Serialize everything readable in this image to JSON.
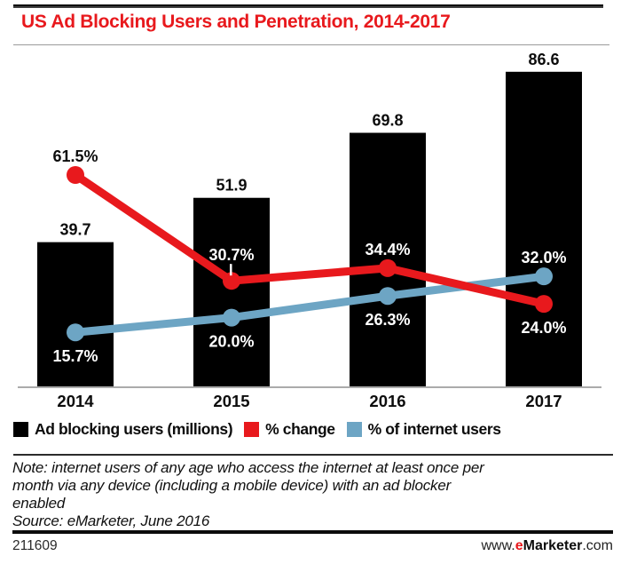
{
  "title": "US Ad Blocking Users and Penetration, 2014-2017",
  "chart_data": {
    "type": "bar",
    "subtype": "bar-line-combo",
    "title": "US Ad Blocking Users and Penetration, 2014-2017",
    "categories": [
      "2014",
      "2015",
      "2016",
      "2017"
    ],
    "series": [
      {
        "name": "Ad blocking users (millions)",
        "type": "bar",
        "color": "#000000",
        "values": [
          39.7,
          51.9,
          69.8,
          86.6
        ],
        "labels": [
          "39.7",
          "51.9",
          "69.8",
          "86.6"
        ]
      },
      {
        "name": "% change",
        "type": "line",
        "color": "#e8191d",
        "values": [
          61.5,
          30.7,
          34.4,
          24.0
        ],
        "labels": [
          "61.5%",
          "30.7%",
          "34.4%",
          "24.0%"
        ],
        "label_positions": [
          "above",
          "above",
          "above",
          "below"
        ],
        "label_colors": [
          "#0d0d0d",
          "#ffffff",
          "#ffffff",
          "#ffffff"
        ]
      },
      {
        "name": "% of internet users",
        "type": "line",
        "color": "#6da5c4",
        "values": [
          15.7,
          20.0,
          26.3,
          32.0
        ],
        "labels": [
          "15.7%",
          "20.0%",
          "26.3%",
          "32.0%"
        ],
        "label_positions": [
          "below",
          "below",
          "below",
          "above"
        ],
        "label_colors": [
          "#ffffff",
          "#ffffff",
          "#ffffff",
          "#ffffff"
        ]
      }
    ],
    "xlabel": "",
    "ylabel": "",
    "value_axis_visible": false,
    "grid": false,
    "legend_position": "bottom",
    "bar_ylim": [
      0,
      92
    ],
    "line_pct_ylim": [
      0,
      65
    ]
  },
  "legend": [
    {
      "label": "Ad blocking users (millions)",
      "color": "#000000"
    },
    {
      "label": "% change",
      "color": "#e8191d"
    },
    {
      "label": "% of internet users",
      "color": "#6da5c4"
    }
  ],
  "note": "Note: internet users of any age who access the internet at least once per\nmonth via any device (including a mobile device) with an ad blocker\nenabled",
  "source": "Source: eMarketer, June 2016",
  "footer": {
    "chart_id": "211609",
    "site_prefix": "www.",
    "site_brand_e": "e",
    "site_brand_rest": "Marketer",
    "site_suffix": ".com"
  }
}
